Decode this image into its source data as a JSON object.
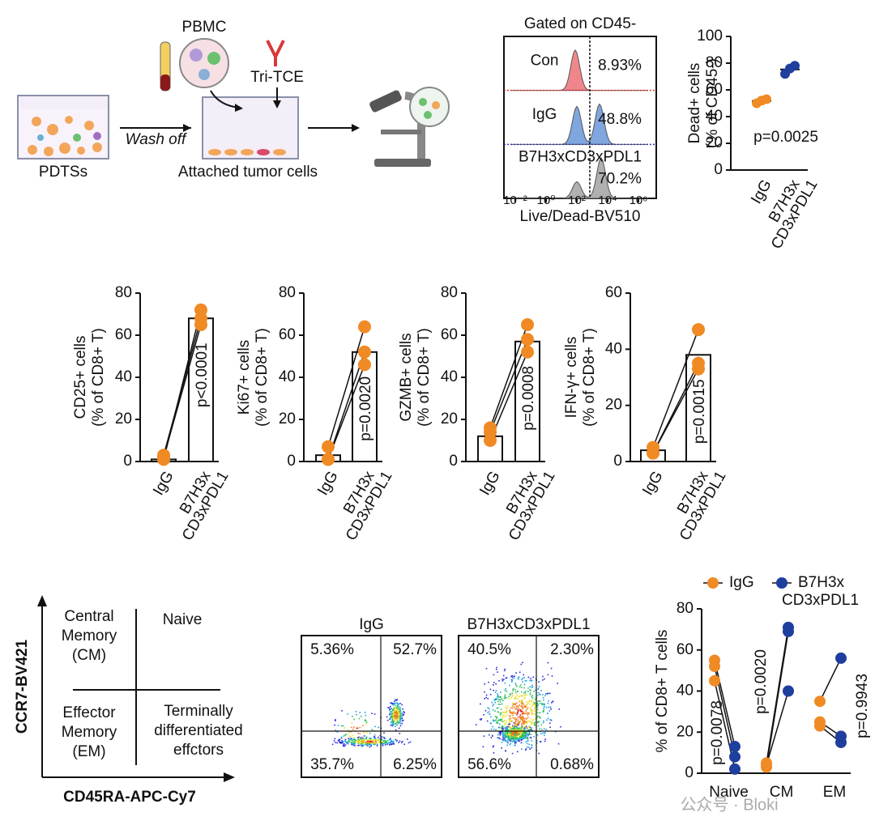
{
  "schematic": {
    "pbmc": "PBMC",
    "tce": "Tri-TCE",
    "pdts": "PDTSs",
    "wash": "Wash off",
    "attached": "Attached tumor cells"
  },
  "flow_histogram": {
    "title": "Gated on CD45-",
    "xlabel": "Live/Dead-BV510",
    "xticks": [
      "10⁻²",
      "10⁰",
      "10²",
      "10⁴",
      "10⁶"
    ],
    "rows": [
      {
        "label": "Con",
        "percent": "8.93%",
        "color": "#f0868c"
      },
      {
        "label": "IgG",
        "percent": "48.8%",
        "color": "#7fa6de"
      },
      {
        "label": "B7H3xCD3xPDL1",
        "percent": "70.2%",
        "color": "#b0b0b0"
      }
    ]
  },
  "chart_data": [
    {
      "type": "dot",
      "ylabel": [
        "Dead+ cells",
        "(% of CD45-)"
      ],
      "categories": [
        [
          "IgG"
        ],
        [
          "B7H3x",
          "CD3xPDL1"
        ]
      ],
      "points": [
        [
          50,
          53,
          52
        ],
        [
          72,
          78,
          76
        ]
      ],
      "colors": [
        "#f08a24",
        "#1f3f9e"
      ],
      "ylim": [
        0,
        100
      ],
      "yticks": [
        0,
        20,
        40,
        60,
        80,
        100
      ],
      "annotation": "p=0.0025"
    },
    {
      "type": "bar",
      "ylabel": [
        "CD25+ cells",
        "(% of CD8+ T)"
      ],
      "categories": [
        [
          "IgG"
        ],
        [
          "B7H3x",
          "CD3xPDL1"
        ]
      ],
      "values": [
        1,
        68
      ],
      "points": [
        [
          1,
          3,
          2
        ],
        [
          72,
          68,
          65
        ]
      ],
      "color": "#f08a24",
      "ylim": [
        0,
        80
      ],
      "yticks": [
        0,
        20,
        40,
        60,
        80
      ],
      "annotation": "p<0.0001"
    },
    {
      "type": "bar",
      "ylabel": [
        "Ki67+ cells",
        "(% of CD8+ T)"
      ],
      "categories": [
        [
          "IgG"
        ],
        [
          "B7H3x",
          "CD3xPDL1"
        ]
      ],
      "values": [
        3,
        52
      ],
      "points": [
        [
          7,
          1,
          1
        ],
        [
          64,
          52,
          46
        ]
      ],
      "color": "#f08a24",
      "ylim": [
        0,
        80
      ],
      "yticks": [
        0,
        20,
        40,
        60,
        80
      ],
      "annotation": "p=0.0020"
    },
    {
      "type": "bar",
      "ylabel": [
        "GZMB+ cells",
        "(% of CD8+ T)"
      ],
      "categories": [
        [
          "IgG"
        ],
        [
          "B7H3x",
          "CD3xPDL1"
        ]
      ],
      "values": [
        12,
        57
      ],
      "points": [
        [
          16,
          14,
          10
        ],
        [
          65,
          58,
          52
        ]
      ],
      "color": "#f08a24",
      "ylim": [
        0,
        80
      ],
      "yticks": [
        0,
        20,
        40,
        60,
        80
      ],
      "annotation": "p=0.0008"
    },
    {
      "type": "bar",
      "ylabel": [
        "IFN-γ+ cells",
        "(% of CD8+ T)"
      ],
      "categories": [
        [
          "IgG"
        ],
        [
          "B7H3x",
          "CD3xPDL1"
        ]
      ],
      "values": [
        4,
        38
      ],
      "points": [
        [
          5,
          3,
          3
        ],
        [
          47,
          35,
          33
        ]
      ],
      "color": "#f08a24",
      "ylim": [
        0,
        60
      ],
      "yticks": [
        0,
        20,
        40,
        60
      ],
      "annotation": "p=0.0015"
    },
    {
      "type": "paired",
      "ylabel": [
        "% of CD8+ T cells"
      ],
      "categories": [
        "Naive",
        "CM",
        "EM"
      ],
      "series": [
        {
          "name": [
            "IgG"
          ],
          "color": "#f08a24",
          "values": [
            [
              55,
              52,
              45
            ],
            [
              5,
              3,
              4
            ],
            [
              35,
              25,
              23
            ]
          ]
        },
        {
          "name": [
            "B7H3x",
            "CD3xPDL1"
          ],
          "color": "#1f3f9e",
          "values": [
            [
              13,
              8,
              2
            ],
            [
              71,
              69,
              40
            ],
            [
              56,
              18,
              15
            ]
          ]
        }
      ],
      "ylim": [
        0,
        80
      ],
      "yticks": [
        0,
        20,
        40,
        60,
        80
      ],
      "annotations": [
        "p=0.0078",
        "p=0.0020",
        "p=0.9943"
      ]
    }
  ],
  "quadrant_key": {
    "yaxis": "CCR7-BV421",
    "xaxis": "CD45RA-APC-Cy7",
    "cm": [
      "Central",
      "Memory",
      "(CM)"
    ],
    "naive": [
      "Naive"
    ],
    "em": [
      "Effector",
      "Memory",
      "(EM)"
    ],
    "ted": [
      "Terminally",
      "differentiated",
      "effctors"
    ]
  },
  "flow_plots": [
    {
      "title": "IgG",
      "quadrants": [
        "5.36%",
        "52.7%",
        "35.7%",
        "6.25%"
      ]
    },
    {
      "title": "B7H3xCD3xPDL1",
      "quadrants": [
        "40.5%",
        "2.30%",
        "56.6%",
        "0.68%"
      ]
    }
  ],
  "watermark": "公众号 · Bloki"
}
